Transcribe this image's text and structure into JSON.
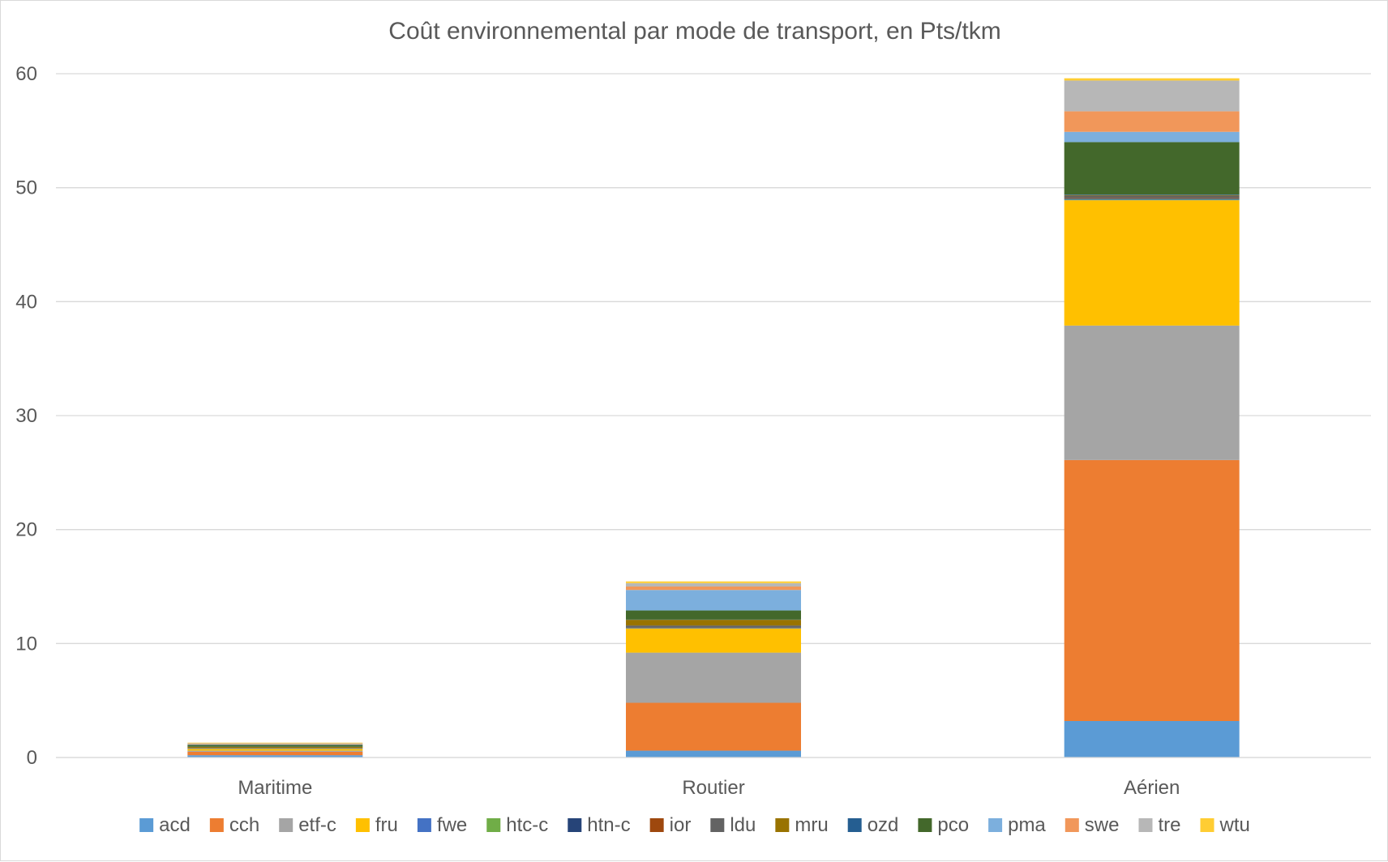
{
  "chart_data": {
    "type": "bar",
    "stacked": true,
    "title": "Coût environnemental par mode de transport, en Pts/tkm",
    "xlabel": "",
    "ylabel": "",
    "ylim": [
      0,
      60
    ],
    "yticks": [
      "0",
      "10",
      "20",
      "30",
      "40",
      "50",
      "60"
    ],
    "grid": true,
    "legend_position": "bottom",
    "categories": [
      "Maritime",
      "Routier",
      "Aérien"
    ],
    "series": [
      {
        "name": "acd",
        "color": "#5b9bd5",
        "values": [
          0.2,
          0.6,
          3.2
        ]
      },
      {
        "name": "cch",
        "color": "#ed7d31",
        "values": [
          0.3,
          4.2,
          22.9
        ]
      },
      {
        "name": "etf-c",
        "color": "#a5a5a5",
        "values": [
          0.1,
          4.4,
          11.8
        ]
      },
      {
        "name": "fru",
        "color": "#ffc000",
        "values": [
          0.15,
          2.1,
          11.0
        ]
      },
      {
        "name": "fwe",
        "color": "#4472c4",
        "values": [
          0.01,
          0.02,
          0.05
        ]
      },
      {
        "name": "htc-c",
        "color": "#70ad47",
        "values": [
          0.01,
          0.02,
          0.05
        ]
      },
      {
        "name": "htn-c",
        "color": "#264478",
        "values": [
          0.01,
          0.02,
          0.05
        ]
      },
      {
        "name": "ior",
        "color": "#9e480e",
        "values": [
          0.01,
          0.02,
          0.05
        ]
      },
      {
        "name": "ldu",
        "color": "#636363",
        "values": [
          0.05,
          0.2,
          0.2
        ]
      },
      {
        "name": "mru",
        "color": "#997300",
        "values": [
          0.1,
          0.5,
          0.05
        ]
      },
      {
        "name": "ozd",
        "color": "#255e91",
        "values": [
          0.01,
          0.02,
          0.05
        ]
      },
      {
        "name": "pco",
        "color": "#43682b",
        "values": [
          0.15,
          0.8,
          4.6
        ]
      },
      {
        "name": "pma",
        "color": "#7cafdd",
        "values": [
          0.05,
          1.8,
          0.9
        ]
      },
      {
        "name": "swe",
        "color": "#f1975a",
        "values": [
          0.05,
          0.3,
          1.8
        ]
      },
      {
        "name": "tre",
        "color": "#b7b7b7",
        "values": [
          0.05,
          0.3,
          2.7
        ]
      },
      {
        "name": "wtu",
        "color": "#ffcd33",
        "values": [
          0.05,
          0.15,
          0.2
        ]
      }
    ]
  }
}
